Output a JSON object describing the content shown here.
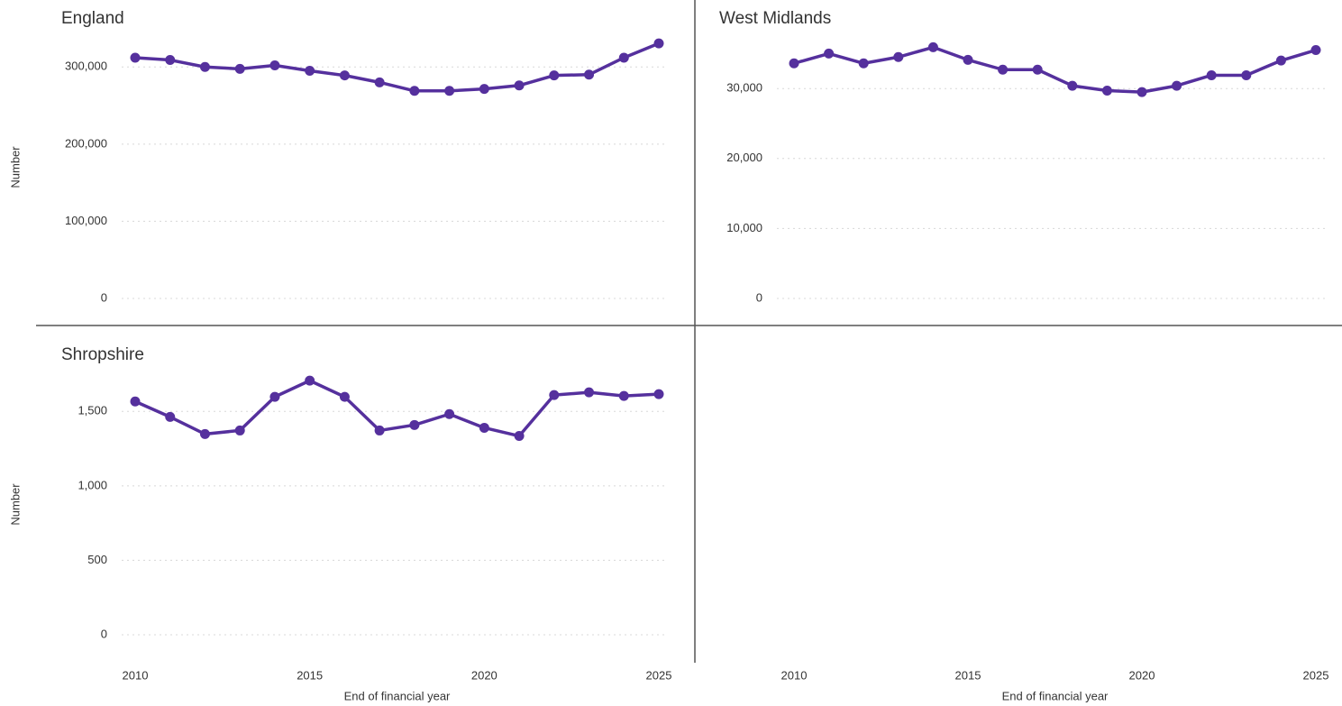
{
  "chart_data": [
    {
      "type": "line",
      "title": "England",
      "ylabel": "Number",
      "color": "#55309d",
      "grid": true,
      "x": [
        2010,
        2011,
        2012,
        2013,
        2014,
        2015,
        2016,
        2017,
        2018,
        2019,
        2020,
        2021,
        2022,
        2023,
        2024,
        2025
      ],
      "values": [
        312000,
        309000,
        300000,
        297500,
        302000,
        295000,
        289000,
        280000,
        269000,
        269000,
        271500,
        276000,
        289000,
        290000,
        312000,
        330500
      ],
      "xlim": [
        2010,
        2025
      ],
      "ylim": [
        0,
        340000
      ],
      "yticks": [
        0,
        {
          "value": 100000,
          "label": "100,000"
        },
        {
          "value": 200000,
          "label": "200,000"
        },
        {
          "value": 300000,
          "label": "300,000"
        }
      ]
    },
    {
      "type": "line",
      "title": "West Midlands",
      "xlabel": "End of financial year",
      "color": "#55309d",
      "grid": true,
      "x": [
        2010,
        2011,
        2012,
        2013,
        2014,
        2015,
        2016,
        2017,
        2018,
        2019,
        2020,
        2021,
        2022,
        2023,
        2024,
        2025
      ],
      "values": [
        33600,
        35000,
        33600,
        34500,
        35900,
        34100,
        32700,
        32700,
        30400,
        29700,
        29500,
        30400,
        31900,
        31900,
        34000,
        35500
      ],
      "xlim": [
        2010,
        2025
      ],
      "ylim": [
        0,
        37500
      ],
      "xticks": [
        2010,
        2015,
        2020,
        2025
      ],
      "yticks": [
        0,
        {
          "value": 10000,
          "label": "10,000"
        },
        {
          "value": 20000,
          "label": "20,000"
        },
        {
          "value": 30000,
          "label": "30,000"
        }
      ]
    },
    {
      "type": "line",
      "title": "Shropshire",
      "xlabel": "End of financial year",
      "ylabel": "Number",
      "color": "#55309d",
      "grid": true,
      "x": [
        2010,
        2011,
        2012,
        2013,
        2014,
        2015,
        2016,
        2017,
        2018,
        2019,
        2020,
        2021,
        2022,
        2023,
        2024,
        2025
      ],
      "values": [
        1567,
        1463,
        1348,
        1372,
        1598,
        1707,
        1598,
        1372,
        1409,
        1482,
        1390,
        1335,
        1610,
        1628,
        1604,
        1616
      ],
      "xlim": [
        2010,
        2025
      ],
      "ylim": [
        0,
        1750
      ],
      "xticks": [
        2010,
        2015,
        2020,
        2025
      ],
      "yticks": [
        0,
        500,
        {
          "value": 1000,
          "label": "1,000"
        },
        {
          "value": 1500,
          "label": "1,500"
        }
      ]
    }
  ]
}
